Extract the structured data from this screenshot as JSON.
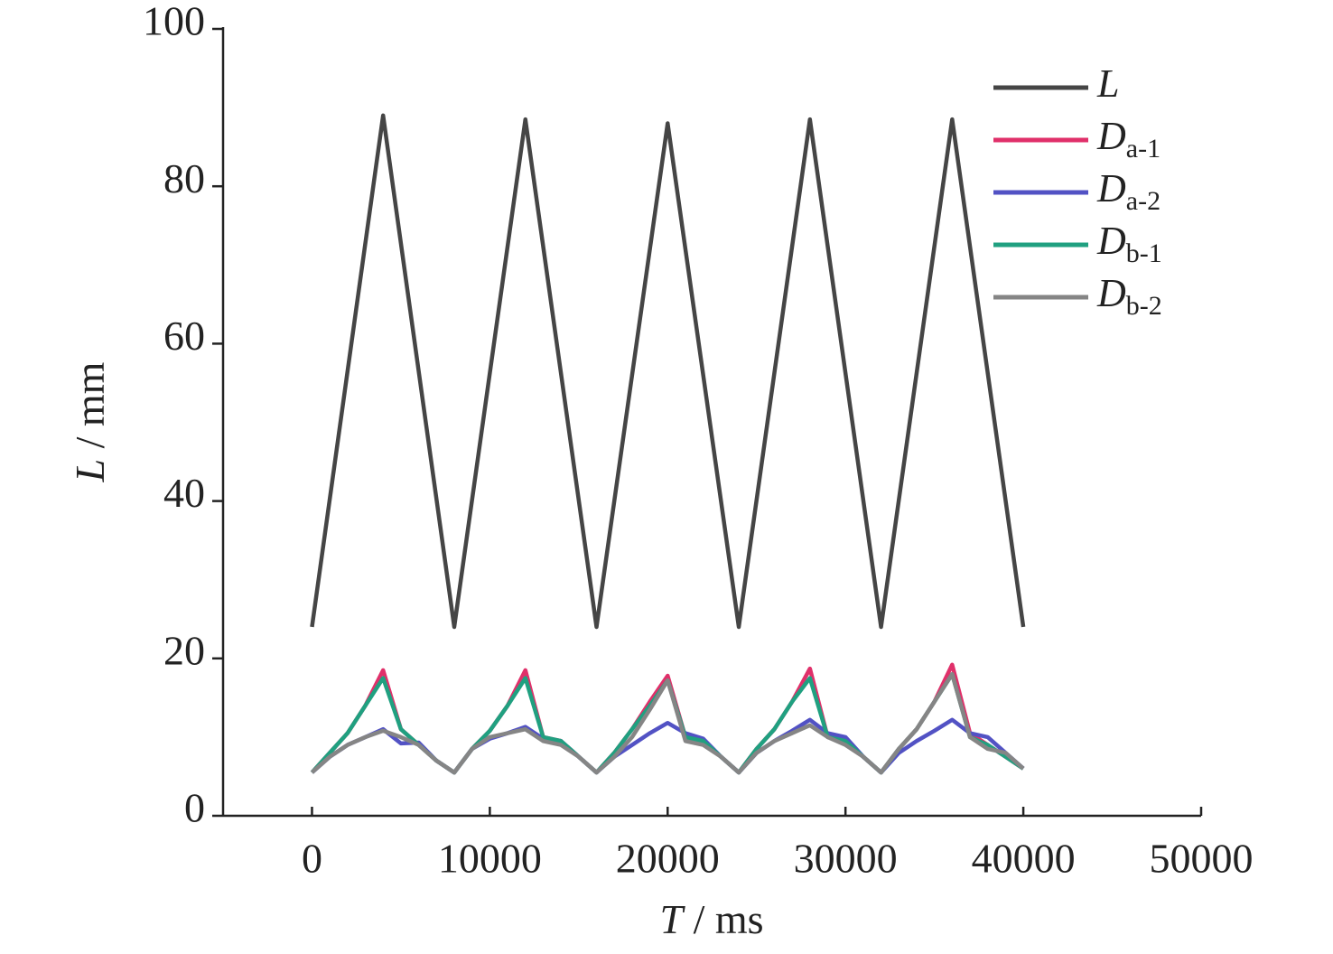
{
  "chart_data": {
    "type": "line",
    "xlabel": "T / ms",
    "ylabel": "L / mm",
    "xlim": [
      -5000,
      50000
    ],
    "xticks": [
      0,
      10000,
      20000,
      30000,
      40000,
      50000
    ],
    "ylim": [
      0,
      100
    ],
    "yticks": [
      0,
      20,
      40,
      60,
      80,
      100
    ],
    "legend": "upper right",
    "series": [
      {
        "name": "L",
        "color": "#454545",
        "x": [
          0,
          4000,
          8000,
          12000,
          16000,
          20000,
          24000,
          28000,
          32000,
          36000,
          40000
        ],
        "values": [
          24,
          89,
          24,
          88.5,
          24,
          88,
          24,
          88.5,
          24,
          88.5,
          24
        ]
      },
      {
        "name": "Da-1",
        "color": "#e0306a",
        "x": [
          0,
          1000,
          2000,
          3000,
          4000,
          5000,
          6000,
          7000,
          8000,
          9000,
          10000,
          11000,
          12000,
          13000,
          14000,
          15000,
          16000,
          17000,
          18000,
          19000,
          20000,
          21000,
          22000,
          23000,
          24000,
          25000,
          26000,
          27000,
          28000,
          29000,
          30000,
          31000,
          32000,
          33000,
          34000,
          35000,
          36000,
          37000,
          38000,
          39000,
          40000
        ],
        "values": [
          5.5,
          8,
          10.5,
          14,
          18.5,
          11,
          9,
          7,
          5.5,
          8.5,
          10.8,
          14,
          18.5,
          10,
          9.5,
          7.5,
          5.5,
          8,
          11,
          14.5,
          17.8,
          10,
          9.5,
          7.5,
          5.5,
          8.5,
          11,
          14.5,
          18.7,
          10,
          9.5,
          7.5,
          5.5,
          8.5,
          11,
          14.5,
          19.2,
          10.5,
          9,
          7.5,
          6
        ]
      },
      {
        "name": "Da-2",
        "color": "#5252c4",
        "x": [
          0,
          1000,
          2000,
          3000,
          4000,
          5000,
          6000,
          7000,
          8000,
          9000,
          10000,
          11000,
          12000,
          13000,
          14000,
          15000,
          16000,
          17000,
          18000,
          19000,
          20000,
          21000,
          22000,
          23000,
          24000,
          25000,
          26000,
          27000,
          28000,
          29000,
          30000,
          31000,
          32000,
          33000,
          34000,
          35000,
          36000,
          37000,
          38000,
          39000,
          40000
        ],
        "values": [
          5.5,
          7.5,
          9,
          10,
          11,
          9.2,
          9.3,
          7,
          5.5,
          8.5,
          9.8,
          10.5,
          11.3,
          9.8,
          9.5,
          7.5,
          5.5,
          7.5,
          9,
          10.5,
          11.8,
          10.5,
          9.8,
          7.5,
          5.5,
          8,
          9.5,
          10.8,
          12.2,
          10.5,
          10,
          7.5,
          5.5,
          8,
          9.5,
          10.8,
          12.2,
          10.5,
          10,
          8,
          6
        ]
      },
      {
        "name": "Db-1",
        "color": "#20a080",
        "x": [
          0,
          1000,
          2000,
          3000,
          4000,
          5000,
          6000,
          7000,
          8000,
          9000,
          10000,
          11000,
          12000,
          13000,
          14000,
          15000,
          16000,
          17000,
          18000,
          19000,
          20000,
          21000,
          22000,
          23000,
          24000,
          25000,
          26000,
          27000,
          28000,
          29000,
          30000,
          31000,
          32000,
          33000,
          34000,
          35000,
          36000,
          37000,
          38000,
          39000,
          40000
        ],
        "values": [
          5.5,
          8,
          10.5,
          14,
          17.5,
          11,
          9,
          7,
          5.5,
          8.5,
          10.8,
          14,
          17.5,
          10,
          9.5,
          7.5,
          5.5,
          8,
          11,
          14,
          17.2,
          10,
          9.5,
          7.5,
          5.5,
          8.5,
          11,
          14.5,
          17.5,
          10,
          9.5,
          7.5,
          5.5,
          8.5,
          11,
          14.5,
          18,
          10,
          9,
          7.5,
          6
        ]
      },
      {
        "name": "Db-2",
        "color": "#858585",
        "x": [
          0,
          1000,
          2000,
          3000,
          4000,
          5000,
          6000,
          7000,
          8000,
          9000,
          10000,
          11000,
          12000,
          13000,
          14000,
          15000,
          16000,
          17000,
          18000,
          19000,
          20000,
          21000,
          22000,
          23000,
          24000,
          25000,
          26000,
          27000,
          28000,
          29000,
          30000,
          31000,
          32000,
          33000,
          34000,
          35000,
          36000,
          37000,
          38000,
          39000,
          40000
        ],
        "values": [
          5.5,
          7.5,
          9,
          10,
          10.8,
          10,
          9,
          7,
          5.5,
          8.5,
          10,
          10.5,
          11,
          9.5,
          9,
          7.5,
          5.5,
          7.5,
          10,
          13.5,
          17.2,
          9.5,
          9,
          7.5,
          5.5,
          8,
          9.5,
          10.5,
          11.5,
          10,
          9,
          7.5,
          5.5,
          8.5,
          11,
          14.5,
          18,
          10,
          8.5,
          8,
          6
        ]
      }
    ]
  }
}
